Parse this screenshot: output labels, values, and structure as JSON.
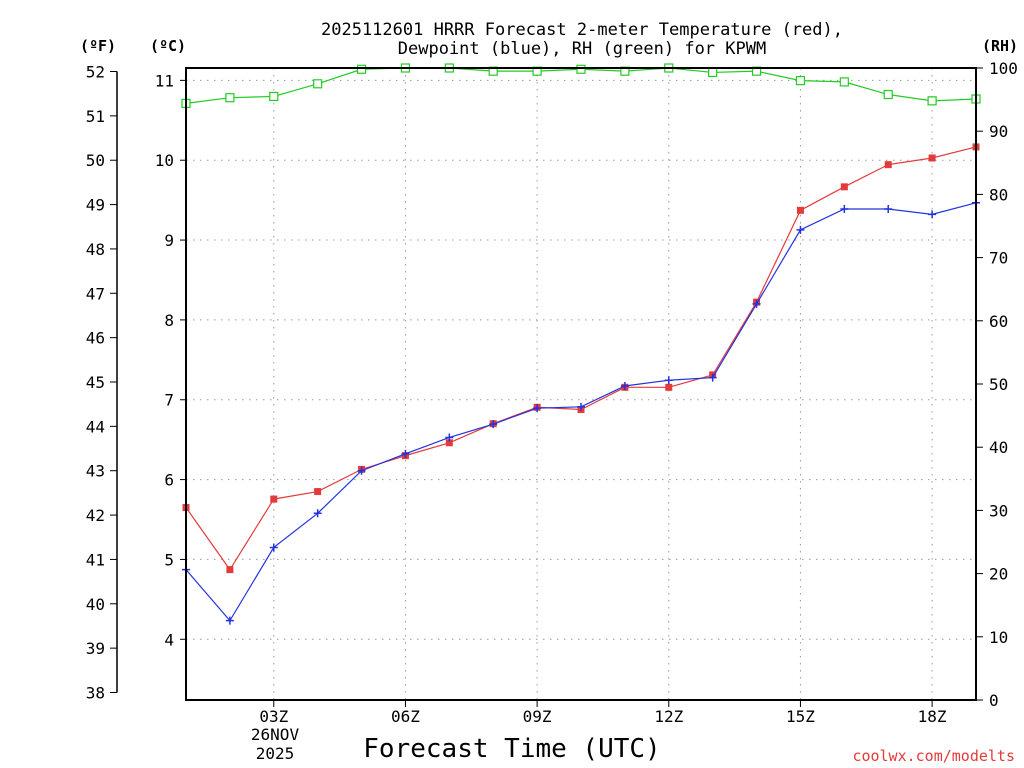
{
  "chart_data": {
    "type": "line",
    "title_lines": [
      "2025112601 HRRR Forecast 2-meter Temperature (red),",
      "Dewpoint (blue), RH (green) for KPWM"
    ],
    "xlabel": "Forecast Time (UTC)",
    "credit": "coolwx.com/modelts",
    "units": {
      "fahrenheit": "(ºF)",
      "celsius": "(ºC)",
      "rh": "(RH)"
    },
    "x": [
      1,
      2,
      3,
      4,
      5,
      6,
      7,
      8,
      9,
      10,
      11,
      12,
      13,
      14,
      15,
      16,
      17,
      18,
      19
    ],
    "xlim": [
      1,
      19
    ],
    "x_ticks": [
      {
        "x": 3,
        "label": "03Z"
      },
      {
        "x": 6,
        "label": "06Z"
      },
      {
        "x": 9,
        "label": "09Z"
      },
      {
        "x": 12,
        "label": "12Z"
      },
      {
        "x": 15,
        "label": "15Z"
      },
      {
        "x": 18,
        "label": "18Z"
      }
    ],
    "date_label": [
      "26NOV",
      "2025"
    ],
    "left_axis_f": {
      "ylim": [
        38,
        52
      ],
      "ticks": [
        38,
        39,
        40,
        41,
        42,
        43,
        44,
        45,
        46,
        47,
        48,
        49,
        50,
        51,
        52
      ]
    },
    "left_axis_c": {
      "ticks": [
        4,
        5,
        6,
        7,
        8,
        9,
        10,
        11
      ]
    },
    "right_axis_rh": {
      "ylim": [
        0,
        100
      ],
      "ticks": [
        0,
        10,
        20,
        30,
        40,
        50,
        60,
        70,
        80,
        90,
        100
      ]
    },
    "colors": {
      "temperature": "#e33b3b",
      "dewpoint": "#2233dd",
      "rh": "#22cc22",
      "grid": "#999999"
    },
    "series": [
      {
        "name": "Temperature",
        "units": "F",
        "axis": "left",
        "values": [
          42.17,
          40.77,
          42.36,
          42.53,
          43.03,
          43.34,
          43.63,
          44.06,
          44.43,
          44.38,
          44.88,
          44.88,
          45.16,
          46.8,
          48.87,
          49.4,
          49.9,
          50.05,
          50.3
        ]
      },
      {
        "name": "Dewpoint",
        "units": "F",
        "axis": "left",
        "values": [
          40.77,
          39.62,
          41.27,
          42.04,
          43.0,
          43.38,
          43.75,
          44.05,
          44.41,
          44.44,
          44.91,
          45.04,
          45.1,
          46.76,
          48.43,
          48.9,
          48.9,
          48.78,
          49.04
        ]
      },
      {
        "name": "RH",
        "units": "%",
        "axis": "right",
        "values": [
          94.4,
          95.3,
          95.5,
          97.5,
          99.8,
          100.0,
          100.0,
          99.5,
          99.5,
          99.8,
          99.5,
          100.0,
          99.3,
          99.5,
          98.0,
          97.8,
          95.8,
          94.8,
          95.1
        ]
      }
    ]
  }
}
